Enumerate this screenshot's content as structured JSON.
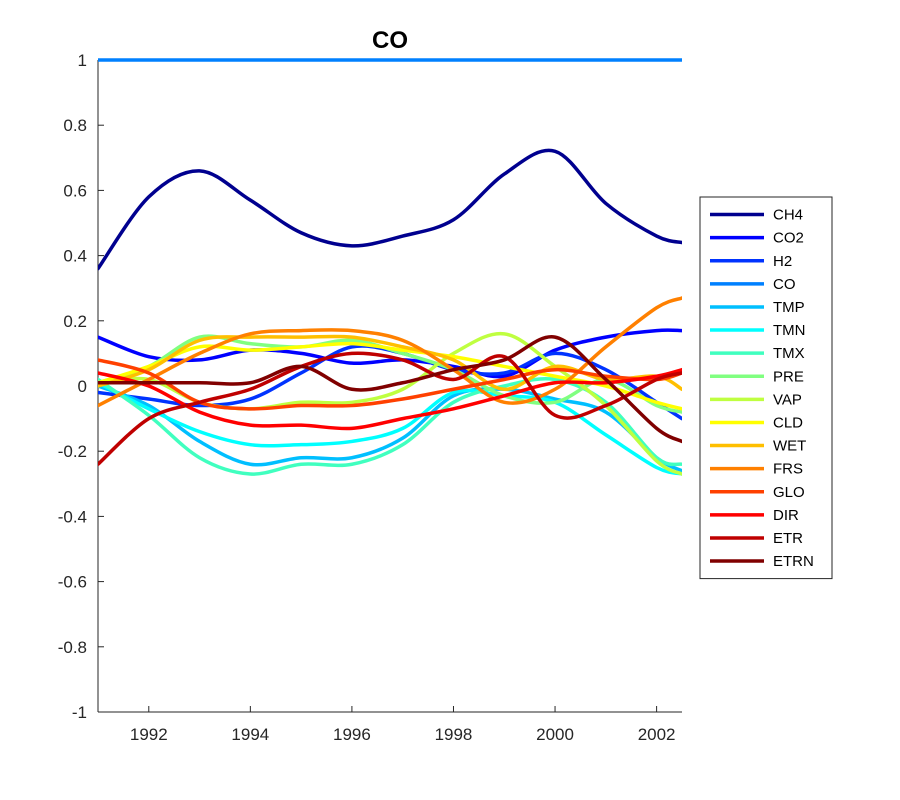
{
  "chart_data": {
    "type": "line",
    "title": "CO",
    "xlabel": "",
    "ylabel": "",
    "xlim": [
      1991,
      2002.5
    ],
    "ylim": [
      -1,
      1
    ],
    "xticks": [
      1992,
      1994,
      1996,
      1998,
      2000,
      2002
    ],
    "xtick_labels": [
      "1992",
      "1994",
      "1996",
      "1998",
      "2000",
      "2002"
    ],
    "yticks": [
      -1,
      -0.8,
      -0.6,
      -0.4,
      -0.2,
      0,
      0.2,
      0.4,
      0.6,
      0.8,
      1
    ],
    "ytick_labels": [
      "-1",
      "-0.8",
      "-0.6",
      "-0.4",
      "-0.2",
      "0",
      "0.2",
      "0.4",
      "0.6",
      "0.8",
      "1"
    ],
    "grid": false,
    "legend_position": "outside-right",
    "x": [
      1991,
      1992,
      1993,
      1994,
      1995,
      1996,
      1997,
      1998,
      1999,
      2000,
      2001,
      2002,
      2002.5
    ],
    "series": [
      {
        "name": "CH4",
        "color": "#00008f",
        "values": [
          0.36,
          0.58,
          0.66,
          0.57,
          0.47,
          0.43,
          0.46,
          0.51,
          0.65,
          0.72,
          0.56,
          0.46,
          0.44
        ]
      },
      {
        "name": "CO2",
        "color": "#0000ff",
        "values": [
          0.15,
          0.09,
          0.08,
          0.11,
          0.1,
          0.07,
          0.08,
          0.06,
          0.03,
          0.11,
          0.15,
          0.17,
          0.17
        ]
      },
      {
        "name": "H2",
        "color": "#0033ff",
        "values": [
          -0.02,
          -0.04,
          -0.06,
          -0.04,
          0.04,
          0.12,
          0.1,
          0.05,
          0.04,
          0.1,
          0.05,
          -0.05,
          -0.1
        ]
      },
      {
        "name": "CO",
        "color": "#0080ff",
        "values": [
          1,
          1,
          1,
          1,
          1,
          1,
          1,
          1,
          1,
          1,
          1,
          1,
          1
        ]
      },
      {
        "name": "TMP",
        "color": "#00bfff",
        "values": [
          0.0,
          -0.06,
          -0.17,
          -0.24,
          -0.22,
          -0.22,
          -0.16,
          -0.03,
          -0.01,
          -0.04,
          -0.08,
          -0.22,
          -0.26
        ]
      },
      {
        "name": "TMN",
        "color": "#00ffff",
        "values": [
          0.01,
          -0.07,
          -0.14,
          -0.18,
          -0.18,
          -0.17,
          -0.13,
          -0.02,
          -0.03,
          -0.05,
          -0.15,
          -0.25,
          -0.27
        ]
      },
      {
        "name": "TMX",
        "color": "#40ffbf",
        "values": [
          0.02,
          -0.09,
          -0.22,
          -0.27,
          -0.24,
          -0.24,
          -0.18,
          -0.05,
          0.0,
          0.02,
          -0.05,
          -0.22,
          -0.24
        ]
      },
      {
        "name": "PRE",
        "color": "#80ff80",
        "values": [
          0.01,
          0.06,
          0.15,
          0.13,
          0.12,
          0.14,
          0.1,
          0.05,
          -0.03,
          -0.05,
          0.02,
          -0.06,
          -0.08
        ]
      },
      {
        "name": "VAP",
        "color": "#bfff40",
        "values": [
          0.01,
          0.02,
          -0.05,
          -0.07,
          -0.05,
          -0.05,
          -0.01,
          0.1,
          0.16,
          0.06,
          -0.06,
          -0.23,
          -0.27
        ]
      },
      {
        "name": "CLD",
        "color": "#ffff00",
        "values": [
          0.01,
          0.06,
          0.12,
          0.11,
          0.12,
          0.13,
          0.11,
          0.09,
          0.06,
          0.03,
          0.0,
          -0.05,
          -0.07
        ]
      },
      {
        "name": "WET",
        "color": "#ffbf00",
        "values": [
          0.0,
          0.05,
          0.14,
          0.15,
          0.15,
          0.15,
          0.12,
          0.08,
          -0.01,
          0.06,
          0.02,
          0.03,
          -0.01
        ]
      },
      {
        "name": "FRS",
        "color": "#ff8000",
        "values": [
          -0.06,
          0.02,
          0.1,
          0.16,
          0.17,
          0.17,
          0.14,
          0.05,
          -0.05,
          -0.01,
          0.12,
          0.24,
          0.27
        ]
      },
      {
        "name": "GLO",
        "color": "#ff4000",
        "values": [
          0.08,
          0.04,
          -0.05,
          -0.07,
          -0.06,
          -0.06,
          -0.04,
          -0.01,
          0.02,
          0.05,
          0.03,
          0.02,
          0.04
        ]
      },
      {
        "name": "DIR",
        "color": "#ff0000",
        "values": [
          0.04,
          0.0,
          -0.08,
          -0.12,
          -0.12,
          -0.13,
          -0.1,
          -0.07,
          -0.03,
          0.01,
          0.01,
          0.03,
          0.05
        ]
      },
      {
        "name": "ETR",
        "color": "#bf0000",
        "values": [
          -0.24,
          -0.1,
          -0.05,
          -0.01,
          0.06,
          0.1,
          0.08,
          0.02,
          0.09,
          -0.09,
          -0.06,
          0.02,
          0.04
        ]
      },
      {
        "name": "ETRN",
        "color": "#800000",
        "values": [
          0.01,
          0.01,
          0.01,
          0.01,
          0.06,
          -0.01,
          0.01,
          0.05,
          0.08,
          0.15,
          0.02,
          -0.13,
          -0.17
        ]
      }
    ]
  }
}
